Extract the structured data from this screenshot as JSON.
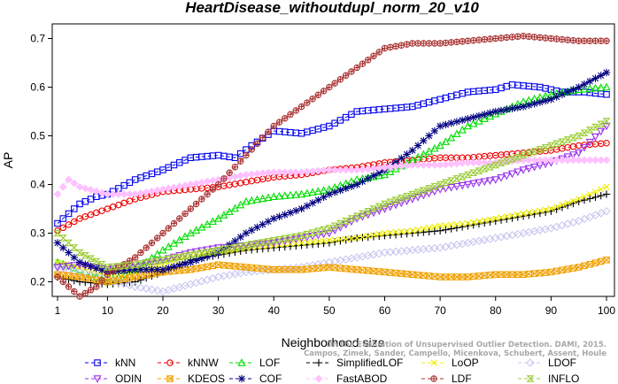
{
  "chart_data": {
    "type": "line",
    "title": "HeartDisease_withoutdupl_norm_20_v10",
    "xlabel": "Neighborhood size",
    "ylabel": "AP",
    "xlim": [
      1,
      100
    ],
    "ylim": [
      0.17,
      0.73
    ],
    "xticks": [
      1,
      10,
      20,
      30,
      40,
      50,
      60,
      70,
      80,
      90,
      100
    ],
    "yticks": [
      0.2,
      0.3,
      0.4,
      0.5,
      0.6,
      0.7
    ],
    "grid": false,
    "legend_position": "bottom",
    "watermark": [
      "Campos, Zimek, Sander, Campello, Micenkova, Schubert, Assent, Houle",
      "On the Evaluation of Unsupervised Outlier Detection. DAMI, 2015."
    ],
    "series": [
      {
        "name": "kNN",
        "color": "#0000ee",
        "marker": "square",
        "dashed": true,
        "points": [
          [
            1,
            0.32
          ],
          [
            3,
            0.34
          ],
          [
            5,
            0.36
          ],
          [
            8,
            0.375
          ],
          [
            10,
            0.38
          ],
          [
            15,
            0.41
          ],
          [
            20,
            0.43
          ],
          [
            25,
            0.455
          ],
          [
            30,
            0.46
          ],
          [
            33,
            0.455
          ],
          [
            36,
            0.48
          ],
          [
            40,
            0.51
          ],
          [
            45,
            0.505
          ],
          [
            50,
            0.52
          ],
          [
            55,
            0.55
          ],
          [
            60,
            0.555
          ],
          [
            65,
            0.56
          ],
          [
            70,
            0.575
          ],
          [
            75,
            0.59
          ],
          [
            80,
            0.595
          ],
          [
            83,
            0.605
          ],
          [
            88,
            0.6
          ],
          [
            92,
            0.59
          ],
          [
            96,
            0.59
          ],
          [
            100,
            0.585
          ]
        ]
      },
      {
        "name": "kNNW",
        "color": "#ee0000",
        "marker": "circle",
        "dashed": true,
        "points": [
          [
            1,
            0.305
          ],
          [
            5,
            0.33
          ],
          [
            10,
            0.35
          ],
          [
            15,
            0.37
          ],
          [
            20,
            0.385
          ],
          [
            25,
            0.39
          ],
          [
            30,
            0.395
          ],
          [
            35,
            0.405
          ],
          [
            40,
            0.415
          ],
          [
            45,
            0.42
          ],
          [
            50,
            0.43
          ],
          [
            55,
            0.435
          ],
          [
            60,
            0.445
          ],
          [
            65,
            0.45
          ],
          [
            70,
            0.455
          ],
          [
            75,
            0.455
          ],
          [
            80,
            0.46
          ],
          [
            85,
            0.465
          ],
          [
            90,
            0.47
          ],
          [
            95,
            0.48
          ],
          [
            100,
            0.485
          ]
        ]
      },
      {
        "name": "LOF",
        "color": "#00dd00",
        "marker": "triangle",
        "dashed": true,
        "points": [
          [
            1,
            0.24
          ],
          [
            5,
            0.225
          ],
          [
            10,
            0.2
          ],
          [
            15,
            0.225
          ],
          [
            20,
            0.265
          ],
          [
            25,
            0.3
          ],
          [
            30,
            0.33
          ],
          [
            35,
            0.365
          ],
          [
            40,
            0.375
          ],
          [
            45,
            0.38
          ],
          [
            50,
            0.39
          ],
          [
            55,
            0.41
          ],
          [
            60,
            0.42
          ],
          [
            65,
            0.45
          ],
          [
            70,
            0.48
          ],
          [
            75,
            0.52
          ],
          [
            80,
            0.545
          ],
          [
            85,
            0.57
          ],
          [
            90,
            0.585
          ],
          [
            95,
            0.595
          ],
          [
            100,
            0.6
          ]
        ]
      },
      {
        "name": "SimplifiedLOF",
        "color": "#000000",
        "marker": "plus",
        "dashed": true,
        "points": [
          [
            1,
            0.21
          ],
          [
            5,
            0.2
          ],
          [
            10,
            0.195
          ],
          [
            15,
            0.2
          ],
          [
            20,
            0.22
          ],
          [
            25,
            0.245
          ],
          [
            30,
            0.255
          ],
          [
            35,
            0.265
          ],
          [
            40,
            0.27
          ],
          [
            45,
            0.275
          ],
          [
            50,
            0.28
          ],
          [
            55,
            0.29
          ],
          [
            60,
            0.295
          ],
          [
            65,
            0.3
          ],
          [
            70,
            0.305
          ],
          [
            75,
            0.315
          ],
          [
            80,
            0.325
          ],
          [
            85,
            0.335
          ],
          [
            90,
            0.345
          ],
          [
            95,
            0.365
          ],
          [
            100,
            0.38
          ]
        ]
      },
      {
        "name": "LoOP",
        "color": "#eeee00",
        "marker": "x",
        "dashed": true,
        "points": [
          [
            1,
            0.24
          ],
          [
            5,
            0.23
          ],
          [
            10,
            0.215
          ],
          [
            15,
            0.22
          ],
          [
            20,
            0.235
          ],
          [
            25,
            0.255
          ],
          [
            30,
            0.26
          ],
          [
            35,
            0.27
          ],
          [
            40,
            0.275
          ],
          [
            45,
            0.28
          ],
          [
            50,
            0.285
          ],
          [
            55,
            0.29
          ],
          [
            60,
            0.3
          ],
          [
            65,
            0.305
          ],
          [
            70,
            0.315
          ],
          [
            75,
            0.32
          ],
          [
            80,
            0.33
          ],
          [
            85,
            0.34
          ],
          [
            90,
            0.35
          ],
          [
            95,
            0.37
          ],
          [
            100,
            0.395
          ]
        ]
      },
      {
        "name": "LDOF",
        "color": "#c8c8f0",
        "marker": "diamond",
        "dashed": true,
        "points": [
          [
            1,
            0.23
          ],
          [
            5,
            0.22
          ],
          [
            10,
            0.205
          ],
          [
            15,
            0.19
          ],
          [
            20,
            0.18
          ],
          [
            25,
            0.195
          ],
          [
            30,
            0.21
          ],
          [
            35,
            0.22
          ],
          [
            40,
            0.225
          ],
          [
            45,
            0.23
          ],
          [
            50,
            0.24
          ],
          [
            55,
            0.25
          ],
          [
            60,
            0.26
          ],
          [
            65,
            0.265
          ],
          [
            70,
            0.27
          ],
          [
            75,
            0.28
          ],
          [
            80,
            0.29
          ],
          [
            85,
            0.3
          ],
          [
            90,
            0.31
          ],
          [
            95,
            0.325
          ],
          [
            100,
            0.345
          ]
        ]
      },
      {
        "name": "ODIN",
        "color": "#9933ee",
        "marker": "triangle-down",
        "dashed": true,
        "points": [
          [
            1,
            0.23
          ],
          [
            5,
            0.235
          ],
          [
            10,
            0.225
          ],
          [
            15,
            0.235
          ],
          [
            20,
            0.245
          ],
          [
            25,
            0.26
          ],
          [
            30,
            0.27
          ],
          [
            35,
            0.275
          ],
          [
            40,
            0.28
          ],
          [
            45,
            0.29
          ],
          [
            50,
            0.3
          ],
          [
            55,
            0.33
          ],
          [
            60,
            0.35
          ],
          [
            65,
            0.37
          ],
          [
            70,
            0.39
          ],
          [
            75,
            0.4
          ],
          [
            80,
            0.41
          ],
          [
            85,
            0.43
          ],
          [
            90,
            0.445
          ],
          [
            95,
            0.465
          ],
          [
            100,
            0.52
          ]
        ]
      },
      {
        "name": "KDEOS",
        "color": "#f0a000",
        "marker": "square-x",
        "dashed": true,
        "points": [
          [
            1,
            0.215
          ],
          [
            5,
            0.21
          ],
          [
            10,
            0.2
          ],
          [
            15,
            0.21
          ],
          [
            20,
            0.22
          ],
          [
            25,
            0.225
          ],
          [
            30,
            0.235
          ],
          [
            35,
            0.23
          ],
          [
            40,
            0.225
          ],
          [
            45,
            0.225
          ],
          [
            50,
            0.23
          ],
          [
            55,
            0.225
          ],
          [
            60,
            0.22
          ],
          [
            65,
            0.215
          ],
          [
            70,
            0.21
          ],
          [
            75,
            0.21
          ],
          [
            80,
            0.215
          ],
          [
            85,
            0.215
          ],
          [
            90,
            0.22
          ],
          [
            95,
            0.23
          ],
          [
            100,
            0.245
          ]
        ]
      },
      {
        "name": "COF",
        "color": "#000080",
        "marker": "star",
        "dashed": true,
        "points": [
          [
            1,
            0.28
          ],
          [
            5,
            0.24
          ],
          [
            10,
            0.22
          ],
          [
            15,
            0.225
          ],
          [
            20,
            0.225
          ],
          [
            25,
            0.24
          ],
          [
            30,
            0.26
          ],
          [
            35,
            0.3
          ],
          [
            40,
            0.33
          ],
          [
            45,
            0.35
          ],
          [
            50,
            0.38
          ],
          [
            55,
            0.4
          ],
          [
            60,
            0.43
          ],
          [
            65,
            0.47
          ],
          [
            70,
            0.52
          ],
          [
            75,
            0.535
          ],
          [
            80,
            0.55
          ],
          [
            85,
            0.56
          ],
          [
            90,
            0.575
          ],
          [
            95,
            0.6
          ],
          [
            100,
            0.63
          ]
        ]
      },
      {
        "name": "FastABOD",
        "color": "#ffc0ff",
        "marker": "diamond-filled",
        "dashed": true,
        "points": [
          [
            1,
            0.38
          ],
          [
            3,
            0.41
          ],
          [
            5,
            0.395
          ],
          [
            10,
            0.38
          ],
          [
            15,
            0.38
          ],
          [
            20,
            0.39
          ],
          [
            25,
            0.4
          ],
          [
            30,
            0.41
          ],
          [
            35,
            0.42
          ],
          [
            40,
            0.425
          ],
          [
            45,
            0.425
          ],
          [
            50,
            0.43
          ],
          [
            55,
            0.43
          ],
          [
            60,
            0.435
          ],
          [
            65,
            0.44
          ],
          [
            70,
            0.44
          ],
          [
            75,
            0.445
          ],
          [
            80,
            0.445
          ],
          [
            85,
            0.45
          ],
          [
            90,
            0.45
          ],
          [
            95,
            0.45
          ],
          [
            100,
            0.45
          ]
        ]
      },
      {
        "name": "LDF",
        "color": "#aa3333",
        "marker": "circle-plus",
        "dashed": true,
        "points": [
          [
            1,
            0.21
          ],
          [
            3,
            0.19
          ],
          [
            5,
            0.17
          ],
          [
            8,
            0.19
          ],
          [
            10,
            0.215
          ],
          [
            15,
            0.25
          ],
          [
            20,
            0.3
          ],
          [
            25,
            0.35
          ],
          [
            30,
            0.4
          ],
          [
            35,
            0.46
          ],
          [
            40,
            0.52
          ],
          [
            45,
            0.56
          ],
          [
            50,
            0.6
          ],
          [
            55,
            0.64
          ],
          [
            60,
            0.68
          ],
          [
            65,
            0.69
          ],
          [
            70,
            0.69
          ],
          [
            75,
            0.695
          ],
          [
            80,
            0.7
          ],
          [
            85,
            0.705
          ],
          [
            90,
            0.7
          ],
          [
            95,
            0.695
          ],
          [
            100,
            0.695
          ]
        ]
      },
      {
        "name": "INFLO",
        "color": "#99cc33",
        "marker": "hourglass",
        "dashed": true,
        "points": [
          [
            1,
            0.3
          ],
          [
            5,
            0.26
          ],
          [
            10,
            0.23
          ],
          [
            15,
            0.235
          ],
          [
            20,
            0.245
          ],
          [
            25,
            0.255
          ],
          [
            30,
            0.265
          ],
          [
            35,
            0.275
          ],
          [
            40,
            0.285
          ],
          [
            45,
            0.295
          ],
          [
            50,
            0.31
          ],
          [
            55,
            0.335
          ],
          [
            60,
            0.36
          ],
          [
            65,
            0.38
          ],
          [
            70,
            0.4
          ],
          [
            75,
            0.42
          ],
          [
            80,
            0.44
          ],
          [
            85,
            0.46
          ],
          [
            90,
            0.48
          ],
          [
            95,
            0.5
          ],
          [
            100,
            0.53
          ]
        ]
      }
    ]
  }
}
